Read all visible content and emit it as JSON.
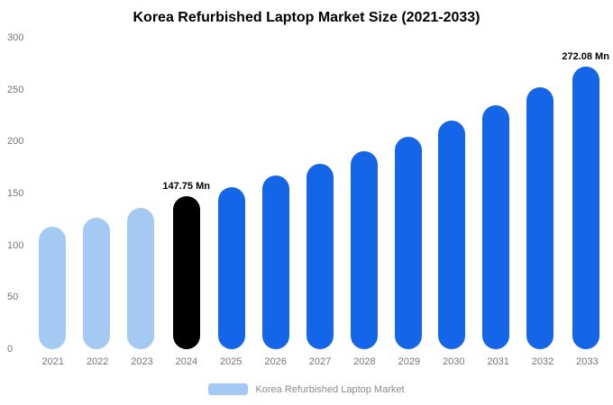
{
  "chart_data": {
    "type": "bar",
    "title": "Korea Refurbished Laptop Market Size (2021-2033)",
    "categories": [
      "2021",
      "2022",
      "2023",
      "2024",
      "2025",
      "2026",
      "2027",
      "2028",
      "2029",
      "2030",
      "2031",
      "2032",
      "2033"
    ],
    "values": [
      118,
      127,
      136,
      147.75,
      156,
      167,
      179,
      191,
      205,
      220,
      235,
      252,
      272.08
    ],
    "bar_colors": [
      "light_blue",
      "light_blue",
      "light_blue",
      "black",
      "blue",
      "blue",
      "blue",
      "blue",
      "blue",
      "blue",
      "blue",
      "blue",
      "blue"
    ],
    "annotations": [
      {
        "index": 3,
        "text": "147.75 Mn"
      },
      {
        "index": 12,
        "text": "272.08 Mn"
      }
    ],
    "xlabel": "",
    "ylabel": "",
    "ylim": [
      0,
      300
    ],
    "yticks": [
      0,
      50,
      100,
      150,
      200,
      250,
      300
    ],
    "grid": false,
    "legend_position": "bottom",
    "legend": [
      {
        "label": "Korea Refurbished Laptop Market",
        "color": "light_blue"
      }
    ],
    "colors": {
      "light_blue": "#A4C9F3",
      "blue": "#1565E8",
      "black": "#000000"
    },
    "text_colors": {
      "axis_labels": "#757575",
      "title": "#000000",
      "annotation": "#000000",
      "legend_text": "#8A8A8A"
    },
    "background": "#FFFFFF"
  }
}
